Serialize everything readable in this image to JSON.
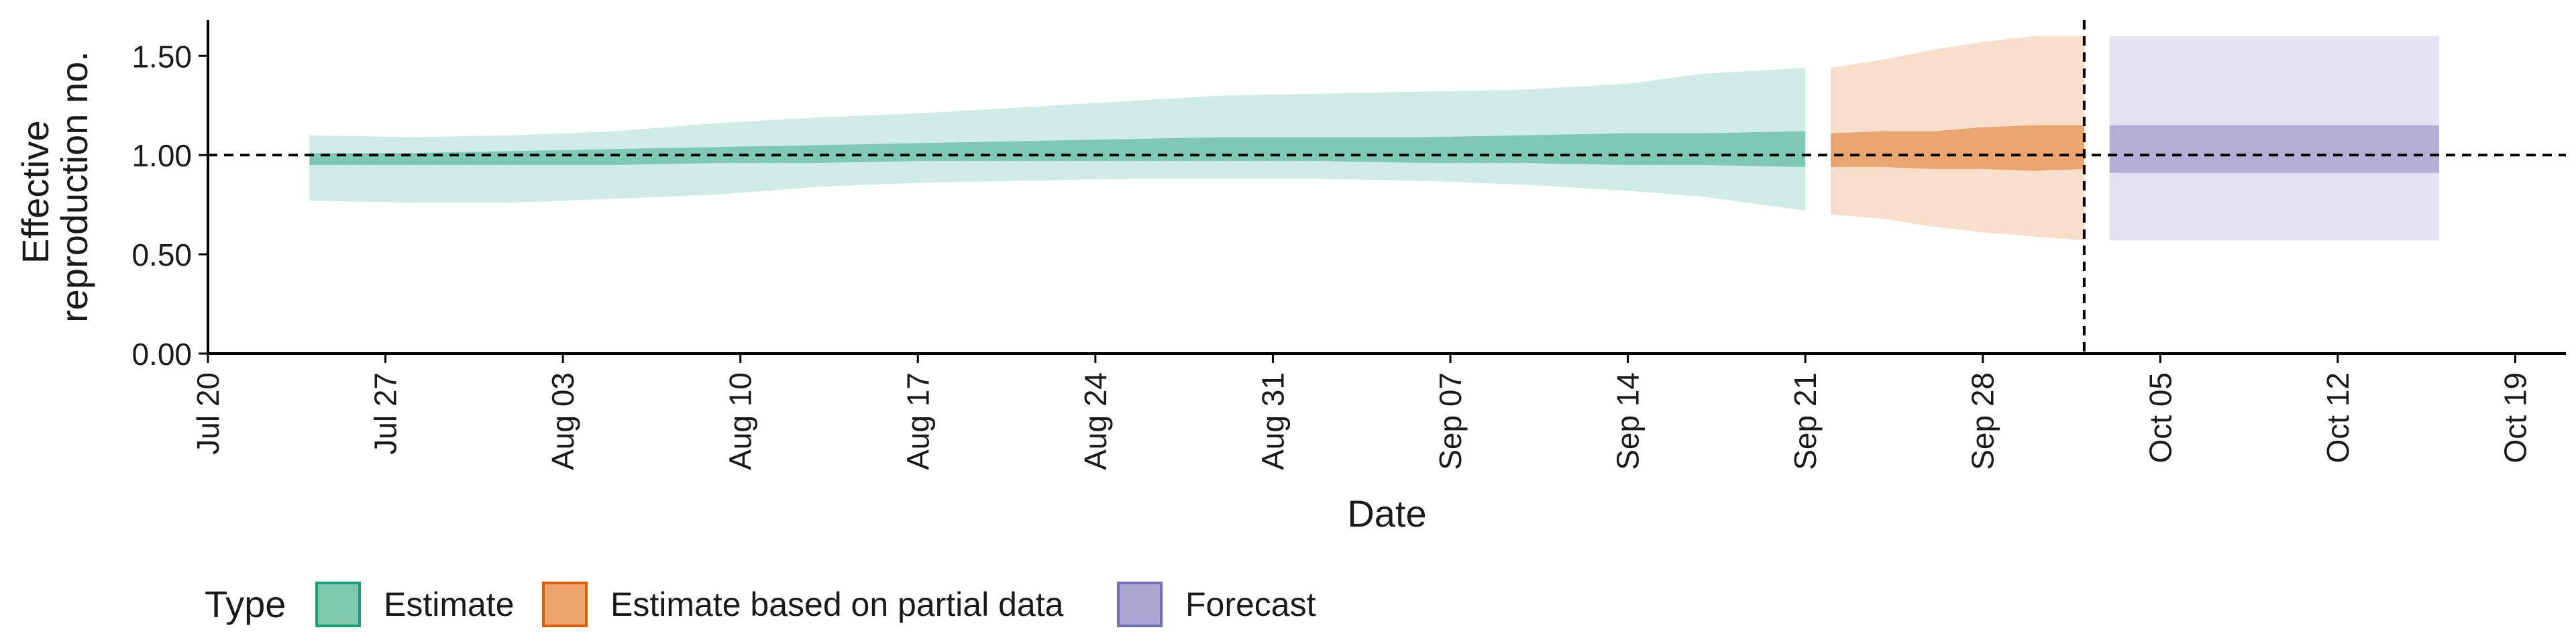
{
  "chart_data": {
    "type": "area",
    "xlabel": "Date",
    "ylabel_lines": [
      "Effective",
      "reproduction no."
    ],
    "ylim": [
      0,
      1.68
    ],
    "xlim": [
      "2020-07-20",
      "2020-10-21"
    ],
    "y_ticks": [
      {
        "value": 0.0,
        "label": "0.00"
      },
      {
        "value": 0.5,
        "label": "0.50"
      },
      {
        "value": 1.0,
        "label": "1.00"
      },
      {
        "value": 1.5,
        "label": "1.50"
      }
    ],
    "x_ticks": [
      {
        "date": "2020-07-20",
        "label": "Jul 20"
      },
      {
        "date": "2020-07-27",
        "label": "Jul 27"
      },
      {
        "date": "2020-08-03",
        "label": "Aug 03"
      },
      {
        "date": "2020-08-10",
        "label": "Aug 10"
      },
      {
        "date": "2020-08-17",
        "label": "Aug 17"
      },
      {
        "date": "2020-08-24",
        "label": "Aug 24"
      },
      {
        "date": "2020-08-31",
        "label": "Aug 31"
      },
      {
        "date": "2020-09-07",
        "label": "Sep 07"
      },
      {
        "date": "2020-09-14",
        "label": "Sep 14"
      },
      {
        "date": "2020-09-21",
        "label": "Sep 21"
      },
      {
        "date": "2020-09-28",
        "label": "Sep 28"
      },
      {
        "date": "2020-10-05",
        "label": "Oct 05"
      },
      {
        "date": "2020-10-12",
        "label": "Oct 12"
      },
      {
        "date": "2020-10-19",
        "label": "Oct 19"
      }
    ],
    "reference_lines": {
      "horizontal_y": 1.0,
      "vertical_x": "2020-10-02",
      "style": "dashed"
    },
    "grid": false,
    "legend": {
      "title": "Type",
      "placement": "bottom-left",
      "entries": [
        {
          "label": "Estimate",
          "fill": "#7fc9ad",
          "stroke": "#1b9e77"
        },
        {
          "label": "Estimate based on partial data",
          "fill": "#eba46b",
          "stroke": "#d95f02"
        },
        {
          "label": "Forecast",
          "fill": "#aaa8d2",
          "stroke": "#7570b3"
        }
      ]
    },
    "series": [
      {
        "name": "Estimate",
        "color": "#1b9e77",
        "outer_alpha": 0.2,
        "inner_alpha": 0.45,
        "x": [
          "2020-07-24",
          "2020-07-28",
          "2020-08-01",
          "2020-08-05",
          "2020-08-09",
          "2020-08-13",
          "2020-08-17",
          "2020-08-21",
          "2020-08-25",
          "2020-08-29",
          "2020-09-02",
          "2020-09-06",
          "2020-09-10",
          "2020-09-14",
          "2020-09-17",
          "2020-09-21"
        ],
        "lower_90": [
          0.77,
          0.76,
          0.76,
          0.78,
          0.8,
          0.84,
          0.86,
          0.87,
          0.88,
          0.88,
          0.88,
          0.87,
          0.85,
          0.82,
          0.79,
          0.72
        ],
        "upper_90": [
          1.1,
          1.09,
          1.1,
          1.12,
          1.16,
          1.19,
          1.21,
          1.24,
          1.27,
          1.3,
          1.31,
          1.32,
          1.33,
          1.36,
          1.41,
          1.44
        ],
        "lower_50": [
          0.95,
          0.95,
          0.95,
          0.95,
          0.96,
          0.96,
          0.97,
          0.97,
          0.97,
          0.97,
          0.97,
          0.96,
          0.96,
          0.95,
          0.95,
          0.94
        ],
        "upper_50": [
          1.01,
          1.01,
          1.02,
          1.03,
          1.04,
          1.05,
          1.06,
          1.07,
          1.08,
          1.09,
          1.09,
          1.09,
          1.1,
          1.11,
          1.11,
          1.12
        ]
      },
      {
        "name": "Estimate based on partial data",
        "color": "#d95f02",
        "outer_alpha": 0.2,
        "inner_alpha": 0.45,
        "x": [
          "2020-09-22",
          "2020-09-24",
          "2020-09-26",
          "2020-09-28",
          "2020-09-30",
          "2020-10-02"
        ],
        "lower_90": [
          0.7,
          0.68,
          0.64,
          0.61,
          0.59,
          0.57
        ],
        "upper_90": [
          1.44,
          1.48,
          1.53,
          1.57,
          1.6,
          1.6
        ],
        "lower_50": [
          0.94,
          0.94,
          0.93,
          0.93,
          0.92,
          0.93
        ],
        "upper_50": [
          1.11,
          1.12,
          1.12,
          1.14,
          1.15,
          1.15
        ]
      },
      {
        "name": "Forecast",
        "color": "#7570b3",
        "outer_alpha": 0.2,
        "inner_alpha": 0.45,
        "x": [
          "2020-10-03",
          "2020-10-16"
        ],
        "lower_90": [
          0.57,
          0.57
        ],
        "upper_90": [
          1.6,
          1.6
        ],
        "lower_50": [
          0.91,
          0.91
        ],
        "upper_50": [
          1.15,
          1.15
        ]
      }
    ]
  }
}
